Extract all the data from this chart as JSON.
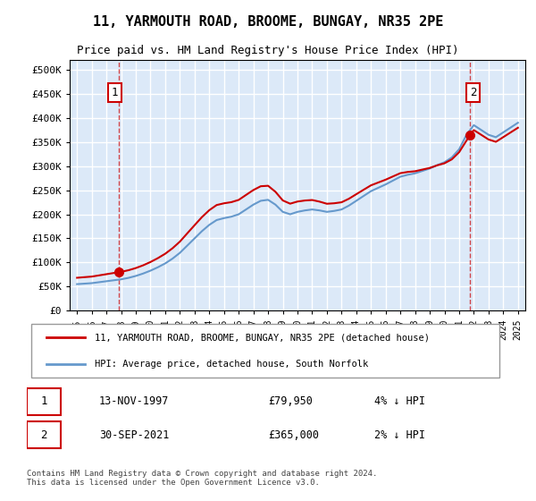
{
  "title": "11, YARMOUTH ROAD, BROOME, BUNGAY, NR35 2PE",
  "subtitle": "Price paid vs. HM Land Registry's House Price Index (HPI)",
  "legend_line1": "11, YARMOUTH ROAD, BROOME, BUNGAY, NR35 2PE (detached house)",
  "legend_line2": "HPI: Average price, detached house, South Norfolk",
  "annotation1_label": "1",
  "annotation1_date": "13-NOV-1997",
  "annotation1_price": "£79,950",
  "annotation1_hpi": "4% ↓ HPI",
  "annotation2_label": "2",
  "annotation2_date": "30-SEP-2021",
  "annotation2_price": "£365,000",
  "annotation2_hpi": "2% ↓ HPI",
  "footnote": "Contains HM Land Registry data © Crown copyright and database right 2024.\nThis data is licensed under the Open Government Licence v3.0.",
  "bg_color": "#dce9f8",
  "plot_bg_color": "#dce9f8",
  "grid_color": "#ffffff",
  "hpi_line_color": "#6699cc",
  "price_line_color": "#cc0000",
  "marker_color": "#cc0000",
  "sale1_x": 1997.87,
  "sale1_y": 79950,
  "sale2_x": 2021.75,
  "sale2_y": 365000,
  "ylim": [
    0,
    520000
  ],
  "xlim_start": 1994.5,
  "xlim_end": 2025.5
}
